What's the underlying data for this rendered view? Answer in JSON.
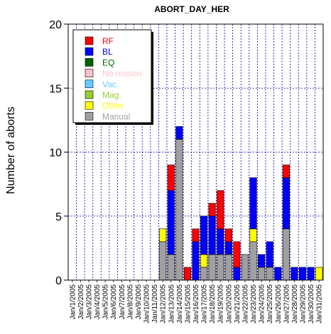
{
  "chart_data": {
    "type": "bar",
    "stacked": true,
    "title": "ABORT_DAY_HER",
    "xlabel": "",
    "ylabel": "Number of aborts",
    "ylim": [
      0,
      20
    ],
    "yticks": [
      0,
      5,
      10,
      15,
      20
    ],
    "grid": true,
    "legend_position": "top-left",
    "categories": [
      "Jan/1/2005",
      "Jan/2/2005",
      "Jan/3/2005",
      "Jan/4/2005",
      "Jan/5/2005",
      "Jan/6/2005",
      "Jan/7/2005",
      "Jan/8/2005",
      "Jan/9/2005",
      "Jan/10/2005",
      "Jan/11/2005",
      "Jan/12/2005",
      "Jan/13/2005",
      "Jan/14/2005",
      "Jan/15/2005",
      "Jan/16/2005",
      "Jan/17/2005",
      "Jan/18/2005",
      "Jan/19/2005",
      "Jan/20/2005",
      "Jan/21/2005",
      "Jan/22/2005",
      "Jan/23/2005",
      "Jan/24/2005",
      "Jan/25/2005",
      "Jan/26/2005",
      "Jan/27/2005",
      "Jan/28/2005",
      "Jan/29/2005",
      "Jan/30/2005",
      "Jan/31/2005"
    ],
    "series": [
      {
        "name": "Manual",
        "color": "#a0a0a0",
        "values": [
          0,
          0,
          0,
          0,
          0,
          0,
          0,
          0,
          0,
          0,
          0,
          3,
          2,
          11,
          0,
          0,
          1,
          2,
          2,
          2,
          0,
          2,
          3,
          1,
          1,
          0,
          4,
          0,
          0,
          0,
          0
        ]
      },
      {
        "name": "Other",
        "color": "#ffff00",
        "values": [
          0,
          0,
          0,
          0,
          0,
          0,
          0,
          0,
          0,
          0,
          0,
          1,
          0,
          0,
          0,
          0,
          1,
          0,
          0,
          0,
          0,
          0,
          1,
          0,
          0,
          0,
          0,
          0,
          0,
          0,
          1
        ]
      },
      {
        "name": "Mag.",
        "color": "#99cc33",
        "values": [
          0,
          0,
          0,
          0,
          0,
          0,
          0,
          0,
          0,
          0,
          0,
          0,
          0,
          0,
          0,
          0,
          0,
          0,
          0,
          0,
          0,
          0,
          0,
          0,
          0,
          0,
          0,
          0,
          0,
          0,
          0
        ]
      },
      {
        "name": "Vac.",
        "color": "#66ccff",
        "values": [
          0,
          0,
          0,
          0,
          0,
          0,
          0,
          0,
          0,
          0,
          0,
          0,
          0,
          0,
          0,
          0,
          0,
          0,
          0,
          0,
          0,
          0,
          0,
          0,
          0,
          0,
          0,
          0,
          0,
          0,
          0
        ]
      },
      {
        "name": "No reason",
        "color": "#ffc0cb",
        "values": [
          0,
          0,
          0,
          0,
          0,
          0,
          0,
          0,
          0,
          0,
          0,
          0,
          0,
          0,
          0,
          0,
          0,
          0,
          0,
          0,
          0,
          0,
          0,
          0,
          0,
          0,
          0,
          0,
          0,
          0,
          0
        ]
      },
      {
        "name": "EQ",
        "color": "#006400",
        "values": [
          0,
          0,
          0,
          0,
          0,
          0,
          0,
          0,
          0,
          0,
          0,
          0,
          0,
          0,
          0,
          0,
          0,
          0,
          0,
          0,
          0,
          0,
          0,
          0,
          0,
          0,
          0,
          0,
          0,
          0,
          0
        ]
      },
      {
        "name": "BL",
        "color": "#0000ff",
        "values": [
          0,
          0,
          0,
          0,
          0,
          0,
          0,
          0,
          0,
          0,
          0,
          0,
          5,
          1,
          0,
          3,
          3,
          3,
          2,
          1,
          1,
          0,
          4,
          1,
          2,
          1,
          4,
          1,
          1,
          1,
          0
        ]
      },
      {
        "name": "RF",
        "color": "#ff0000",
        "values": [
          0,
          0,
          0,
          0,
          0,
          0,
          0,
          0,
          0,
          0,
          0,
          0,
          2,
          0,
          1,
          1,
          0,
          1,
          3,
          1,
          2,
          0,
          0,
          0,
          0,
          0,
          1,
          0,
          0,
          0,
          0
        ]
      }
    ],
    "legend": [
      {
        "name": "RF",
        "color": "#ff0000",
        "text_color": "#ff0000"
      },
      {
        "name": "BL",
        "color": "#0000ff",
        "text_color": "#0000ff"
      },
      {
        "name": "EQ",
        "color": "#006400",
        "text_color": "#006400"
      },
      {
        "name": "No reason",
        "color": "#ffc0cb",
        "text_color": "#ffc0cb"
      },
      {
        "name": "Vac.",
        "color": "#66ccff",
        "text_color": "#66ccff"
      },
      {
        "name": "Mag.",
        "color": "#99cc33",
        "text_color": "#99cc33"
      },
      {
        "name": "Other",
        "color": "#ffff00",
        "text_color": "#ffff00"
      },
      {
        "name": "Manual",
        "color": "#a0a0a0",
        "text_color": "#a0a0a0"
      }
    ]
  }
}
